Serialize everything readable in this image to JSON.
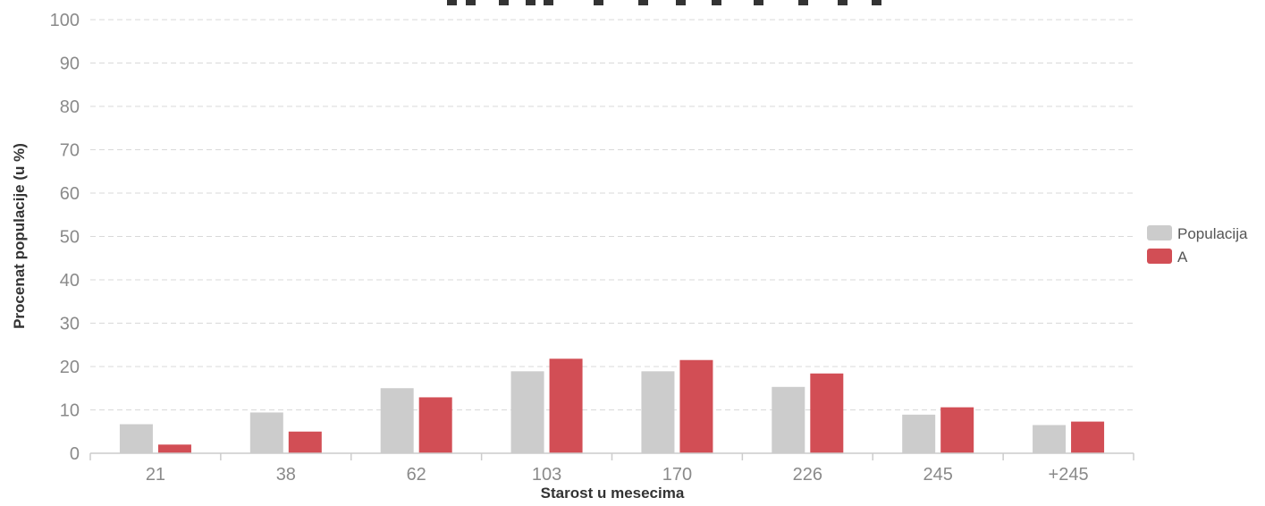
{
  "chart_data": {
    "type": "bar",
    "xlabel": "Starost u mesecima",
    "ylabel": "Procenat populacije (u %)",
    "ylim": [
      0,
      100
    ],
    "yticks": [
      0,
      10,
      20,
      30,
      40,
      50,
      60,
      70,
      80,
      90,
      100
    ],
    "grid": true,
    "legend_position": "right",
    "categories": [
      "21",
      "38",
      "62",
      "103",
      "170",
      "226",
      "245",
      "+245"
    ],
    "series": [
      {
        "name": "Populacija",
        "color": "#cccccc",
        "values": [
          6.7,
          9.4,
          15.0,
          18.9,
          18.9,
          15.3,
          8.9,
          6.5
        ]
      },
      {
        "name": "A",
        "color": "#d24e55",
        "values": [
          2.0,
          5.0,
          12.9,
          21.8,
          21.5,
          18.4,
          10.6,
          7.3
        ]
      }
    ]
  }
}
